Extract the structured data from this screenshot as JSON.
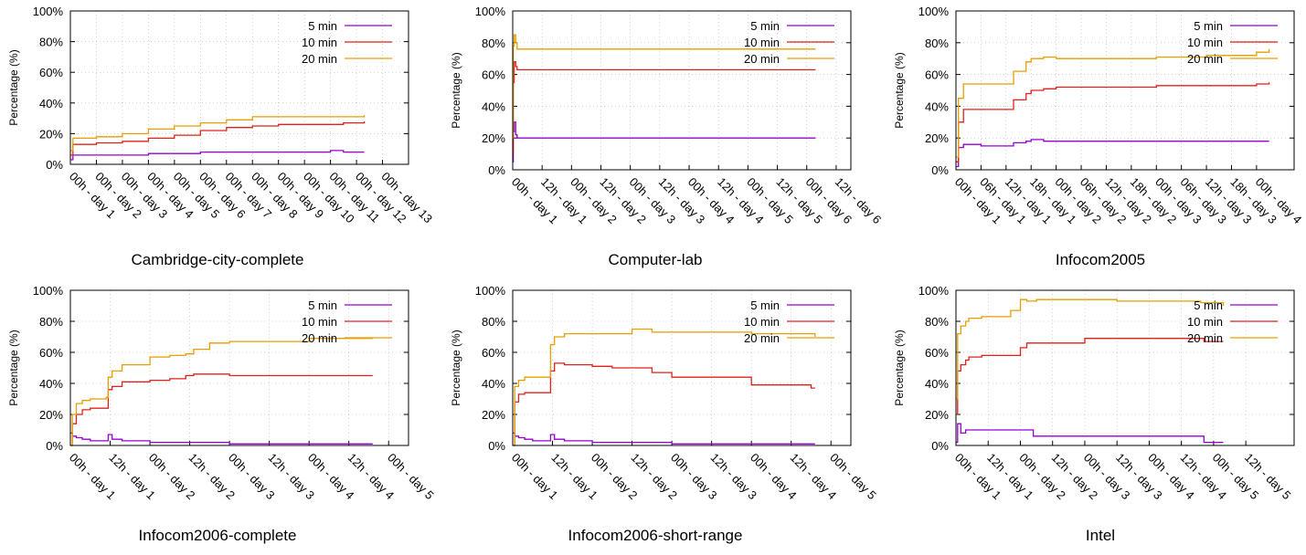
{
  "colors": {
    "5 min": "#9400d3",
    "10 min": "#e0201b",
    "20 min": "#e69f00"
  },
  "chart_data": [
    {
      "type": "line",
      "caption": "Cambridge-city-complete",
      "ylabel": "Percentage (%)",
      "ylim": [
        0,
        100
      ],
      "yticks": [
        "0%",
        "20%",
        "40%",
        "60%",
        "80%",
        "100%"
      ],
      "xlim": [
        0,
        13
      ],
      "xticks": [
        {
          "x": 0,
          "label": "00h - day 1"
        },
        {
          "x": 1,
          "label": "00h - day 2"
        },
        {
          "x": 2,
          "label": "00h - day 3"
        },
        {
          "x": 3,
          "label": "00h - day 4"
        },
        {
          "x": 4,
          "label": "00h - day 5"
        },
        {
          "x": 5,
          "label": "00h - day 6"
        },
        {
          "x": 6,
          "label": "00h - day 7"
        },
        {
          "x": 7,
          "label": "00h - day 8"
        },
        {
          "x": 8,
          "label": "00h - day 9"
        },
        {
          "x": 9,
          "label": "00h - day 10"
        },
        {
          "x": 10,
          "label": "00h - day 11"
        },
        {
          "x": 11,
          "label": "00h - day 12"
        },
        {
          "x": 12,
          "label": "00h - day 13"
        }
      ],
      "legend": "top-right",
      "series": [
        {
          "name": "5 min",
          "x": [
            0,
            0.1,
            1,
            2,
            3,
            4,
            5,
            6,
            7,
            8,
            9,
            10,
            10.5,
            11.3
          ],
          "y": [
            3,
            6,
            6,
            6,
            7,
            7,
            8,
            8,
            8,
            8,
            8,
            9,
            8,
            8
          ]
        },
        {
          "name": "10 min",
          "x": [
            0,
            0.1,
            1,
            2,
            3,
            4,
            5,
            6,
            7,
            8,
            9,
            10,
            10.5,
            11.3
          ],
          "y": [
            6,
            13,
            14,
            15,
            17,
            19,
            22,
            24,
            25,
            26,
            26,
            26,
            27,
            28
          ]
        },
        {
          "name": "20 min",
          "x": [
            0,
            0.1,
            1,
            2,
            3,
            4,
            5,
            6,
            7,
            8,
            9,
            10,
            10.5,
            11.3
          ],
          "y": [
            9,
            17,
            18,
            20,
            23,
            25,
            27,
            29,
            31,
            31,
            31,
            31,
            31,
            32
          ]
        }
      ]
    },
    {
      "type": "line",
      "caption": "Computer-lab",
      "ylabel": "Percentage (%)",
      "ylim": [
        0,
        100
      ],
      "yticks": [
        "0%",
        "20%",
        "40%",
        "60%",
        "80%",
        "100%"
      ],
      "xlim": [
        0,
        11.5
      ],
      "xticks": [
        {
          "x": 0,
          "label": "00h - day 1"
        },
        {
          "x": 1,
          "label": "12h - day 1"
        },
        {
          "x": 2,
          "label": "00h - day 2"
        },
        {
          "x": 3,
          "label": "12h - day 2"
        },
        {
          "x": 4,
          "label": "00h - day 3"
        },
        {
          "x": 5,
          "label": "12h - day 3"
        },
        {
          "x": 6,
          "label": "00h - day 4"
        },
        {
          "x": 7,
          "label": "12h - day 4"
        },
        {
          "x": 8,
          "label": "00h - day 5"
        },
        {
          "x": 9,
          "label": "12h - day 5"
        },
        {
          "x": 10,
          "label": "00h - day 6"
        },
        {
          "x": 11,
          "label": "12h - day 6"
        }
      ],
      "legend": "top-right",
      "series": [
        {
          "name": "5 min",
          "x": [
            0,
            0.02,
            0.05,
            0.1,
            0.15,
            0.3,
            5,
            10.3
          ],
          "y": [
            5,
            24,
            30,
            22,
            20,
            20,
            20,
            20
          ]
        },
        {
          "name": "10 min",
          "x": [
            0,
            0.02,
            0.05,
            0.1,
            0.15,
            0.3,
            5,
            10.3
          ],
          "y": [
            10,
            55,
            68,
            65,
            63,
            63,
            63,
            63
          ]
        },
        {
          "name": "20 min",
          "x": [
            0,
            0.02,
            0.05,
            0.1,
            0.15,
            0.3,
            5,
            10.3
          ],
          "y": [
            20,
            78,
            85,
            80,
            76,
            76,
            76,
            76
          ]
        }
      ]
    },
    {
      "type": "line",
      "caption": "Infocom2005",
      "ylabel": "Percentage (%)",
      "ylim": [
        0,
        100
      ],
      "yticks": [
        "0%",
        "20%",
        "40%",
        "60%",
        "80%",
        "100%"
      ],
      "xlim": [
        0,
        13.5
      ],
      "xticks": [
        {
          "x": 0,
          "label": "00h - day 1"
        },
        {
          "x": 1,
          "label": "06h - day 1"
        },
        {
          "x": 2,
          "label": "12h - day 1"
        },
        {
          "x": 3,
          "label": "18h - day 1"
        },
        {
          "x": 4,
          "label": "00h - day 2"
        },
        {
          "x": 5,
          "label": "06h - day 2"
        },
        {
          "x": 6,
          "label": "12h - day 2"
        },
        {
          "x": 7,
          "label": "18h - day 2"
        },
        {
          "x": 8,
          "label": "00h - day 3"
        },
        {
          "x": 9,
          "label": "06h - day 3"
        },
        {
          "x": 10,
          "label": "12h - day 3"
        },
        {
          "x": 11,
          "label": "18h - day 3"
        },
        {
          "x": 12,
          "label": "00h - day 4"
        }
      ],
      "legend": "top-right",
      "series": [
        {
          "name": "5 min",
          "x": [
            0,
            0.1,
            0.3,
            1,
            2,
            2.3,
            2.8,
            3,
            3.5,
            4,
            6,
            8,
            10,
            11,
            12.5
          ],
          "y": [
            2,
            14,
            16,
            15,
            15,
            17,
            18,
            19,
            18,
            18,
            18,
            18,
            18,
            18,
            18
          ]
        },
        {
          "name": "10 min",
          "x": [
            0,
            0.1,
            0.3,
            1,
            2,
            2.3,
            2.8,
            3,
            3.5,
            4,
            6,
            8,
            10,
            11,
            12,
            12.5
          ],
          "y": [
            5,
            30,
            38,
            38,
            38,
            44,
            48,
            50,
            51,
            52,
            52,
            53,
            53,
            53,
            54,
            55
          ]
        },
        {
          "name": "20 min",
          "x": [
            0,
            0.1,
            0.3,
            1,
            2,
            2.3,
            2.8,
            3,
            3.5,
            4,
            6,
            8,
            10,
            11,
            12,
            12.5
          ],
          "y": [
            8,
            45,
            54,
            54,
            54,
            62,
            68,
            70,
            71,
            70,
            70,
            71,
            72,
            72,
            74,
            76
          ]
        }
      ]
    },
    {
      "type": "line",
      "caption": "Infocom2006-complete",
      "ylabel": "Percentage (%)",
      "ylim": [
        0,
        100
      ],
      "yticks": [
        "0%",
        "20%",
        "40%",
        "60%",
        "80%",
        "100%"
      ],
      "xlim": [
        0,
        8.5
      ],
      "xticks": [
        {
          "x": 0,
          "label": "00h - day 1"
        },
        {
          "x": 1,
          "label": "12h - day 1"
        },
        {
          "x": 2,
          "label": "00h - day 2"
        },
        {
          "x": 3,
          "label": "12h - day 2"
        },
        {
          "x": 4,
          "label": "00h - day 3"
        },
        {
          "x": 5,
          "label": "12h - day 3"
        },
        {
          "x": 6,
          "label": "00h - day 4"
        },
        {
          "x": 7,
          "label": "12h - day 4"
        },
        {
          "x": 8,
          "label": "00h - day 5"
        }
      ],
      "legend": "top-right",
      "series": [
        {
          "name": "5 min",
          "x": [
            0,
            0.05,
            0.15,
            0.3,
            0.5,
            0.9,
            0.95,
            1.05,
            1.3,
            2,
            3,
            4,
            6,
            7.6
          ],
          "y": [
            8,
            6,
            5,
            4,
            3,
            3,
            7,
            4,
            3,
            2,
            2,
            1,
            1,
            1
          ]
        },
        {
          "name": "10 min",
          "x": [
            0,
            0.05,
            0.15,
            0.3,
            0.5,
            0.9,
            0.95,
            1.05,
            1.3,
            2,
            2.5,
            2.9,
            3.1,
            3.5,
            4,
            6,
            7.6
          ],
          "y": [
            0,
            14,
            20,
            23,
            24,
            24,
            36,
            38,
            41,
            42,
            43,
            45,
            46,
            46,
            45,
            45,
            45
          ]
        },
        {
          "name": "20 min",
          "x": [
            0,
            0.05,
            0.15,
            0.3,
            0.5,
            0.9,
            0.95,
            1.05,
            1.3,
            2,
            2.5,
            2.9,
            3.1,
            3.5,
            4,
            6,
            7.6
          ],
          "y": [
            0,
            20,
            27,
            29,
            30,
            31,
            44,
            48,
            52,
            57,
            58,
            59,
            62,
            66,
            67,
            69,
            69
          ]
        }
      ]
    },
    {
      "type": "line",
      "caption": "Infocom2006-short-range",
      "ylabel": "Percentage (%)",
      "ylim": [
        0,
        100
      ],
      "yticks": [
        "0%",
        "20%",
        "40%",
        "60%",
        "80%",
        "100%"
      ],
      "xlim": [
        0,
        8.5
      ],
      "xticks": [
        {
          "x": 0,
          "label": "00h - day 1"
        },
        {
          "x": 1,
          "label": "12h - day 1"
        },
        {
          "x": 2,
          "label": "00h - day 2"
        },
        {
          "x": 3,
          "label": "12h - day 2"
        },
        {
          "x": 4,
          "label": "00h - day 3"
        },
        {
          "x": 5,
          "label": "12h - day 3"
        },
        {
          "x": 6,
          "label": "00h - day 4"
        },
        {
          "x": 7,
          "label": "12h - day 4"
        },
        {
          "x": 8,
          "label": "00h - day 5"
        }
      ],
      "legend": "top-right",
      "series": [
        {
          "name": "5 min",
          "x": [
            0,
            0.05,
            0.15,
            0.3,
            0.5,
            0.9,
            0.95,
            1.05,
            1.3,
            2,
            3,
            4,
            6,
            7.6
          ],
          "y": [
            8,
            6,
            5,
            4,
            3,
            3,
            7,
            4,
            3,
            2,
            2,
            1,
            1,
            1
          ]
        },
        {
          "name": "10 min",
          "x": [
            0,
            0.05,
            0.15,
            0.3,
            0.5,
            0.9,
            0.95,
            1.05,
            1.3,
            2,
            2.5,
            3,
            3.5,
            4,
            5,
            6,
            7,
            7.5,
            7.6
          ],
          "y": [
            0,
            28,
            33,
            34,
            34,
            34,
            48,
            53,
            52,
            51,
            50,
            50,
            47,
            44,
            44,
            39,
            39,
            37,
            37
          ]
        },
        {
          "name": "20 min",
          "x": [
            0,
            0.05,
            0.15,
            0.3,
            0.5,
            0.9,
            0.95,
            1.05,
            1.3,
            2,
            2.8,
            3.0,
            3.5,
            4,
            6,
            7.6
          ],
          "y": [
            0,
            38,
            42,
            44,
            44,
            44,
            65,
            70,
            72,
            72,
            72,
            75,
            73,
            73,
            72,
            70
          ]
        }
      ]
    },
    {
      "type": "line",
      "caption": "Intel",
      "ylabel": "Percentage (%)",
      "ylim": [
        0,
        100
      ],
      "yticks": [
        "0%",
        "20%",
        "40%",
        "60%",
        "80%",
        "100%"
      ],
      "xlim": [
        0,
        10.5
      ],
      "xticks": [
        {
          "x": 0,
          "label": "00h - day 1"
        },
        {
          "x": 1,
          "label": "12h - day 1"
        },
        {
          "x": 2,
          "label": "00h - day 2"
        },
        {
          "x": 3,
          "label": "12h - day 2"
        },
        {
          "x": 4,
          "label": "00h - day 3"
        },
        {
          "x": 5,
          "label": "12h - day 3"
        },
        {
          "x": 6,
          "label": "00h - day 4"
        },
        {
          "x": 7,
          "label": "12h - day 4"
        },
        {
          "x": 8,
          "label": "00h - day 5"
        },
        {
          "x": 9,
          "label": "12h - day 5"
        }
      ],
      "legend": "top-right",
      "series": [
        {
          "name": "5 min",
          "x": [
            0,
            0.05,
            0.15,
            0.3,
            0.4,
            1,
            2.3,
            2.4,
            4,
            6,
            7.6,
            7.7,
            8.3
          ],
          "y": [
            2,
            14,
            8,
            10,
            10,
            10,
            10,
            6,
            6,
            6,
            6,
            2,
            2
          ]
        },
        {
          "name": "10 min",
          "x": [
            0,
            0.05,
            0.15,
            0.3,
            0.4,
            0.8,
            1,
            1.7,
            2,
            2.2,
            2.5,
            4,
            6,
            7.6,
            7.7,
            8.3
          ],
          "y": [
            20,
            48,
            52,
            55,
            57,
            58,
            58,
            58,
            63,
            66,
            66,
            69,
            69,
            69,
            67,
            67
          ]
        },
        {
          "name": "20 min",
          "x": [
            0,
            0.05,
            0.15,
            0.3,
            0.4,
            0.8,
            1.5,
            1.7,
            2.0,
            2.2,
            2.5,
            3,
            5,
            7.6,
            8.3
          ],
          "y": [
            30,
            72,
            77,
            80,
            82,
            83,
            83,
            87,
            94,
            93,
            94,
            94,
            93,
            92,
            90
          ]
        }
      ]
    }
  ]
}
